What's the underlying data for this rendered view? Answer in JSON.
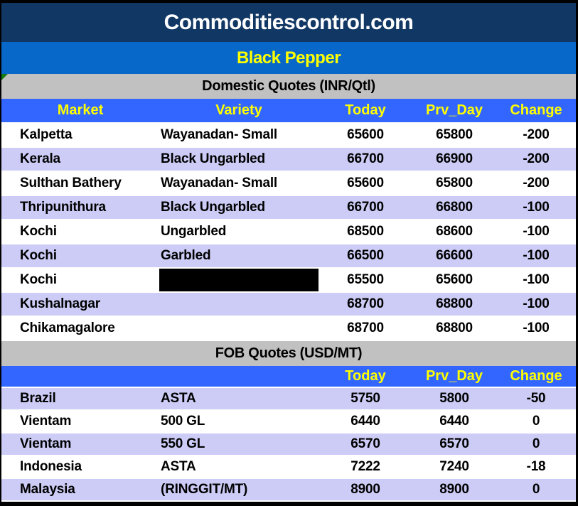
{
  "header": {
    "site_title": "Commoditiescontrol.com",
    "commodity_title": "Black Pepper"
  },
  "colors": {
    "navy_band": "#113764",
    "blue_band": "#0768ca",
    "section_gray": "#c1c1c1",
    "header_row_blue": "#3366fe",
    "row_lavender": "#ccccf6",
    "header_text_yellow": "#ffff00",
    "corner_marker_green": "#147a14"
  },
  "domestic": {
    "section_title": "Domestic Quotes (INR/Qtl)",
    "columns": [
      "Market",
      "Variety",
      "Today",
      "Prv_Day",
      "Change"
    ],
    "rows": [
      {
        "market": "Kalpetta",
        "variety": "Wayanadan- Small",
        "today": "65600",
        "prv_day": "65800",
        "change": "-200"
      },
      {
        "market": "Kerala",
        "variety": "Black Ungarbled",
        "today": "66700",
        "prv_day": "66900",
        "change": "-200"
      },
      {
        "market": "Sulthan Bathery",
        "variety": "Wayanadan- Small",
        "today": "65600",
        "prv_day": "65800",
        "change": "-200"
      },
      {
        "market": "Thripunithura",
        "variety": "Black Ungarbled",
        "today": "66700",
        "prv_day": "66800",
        "change": "-100"
      },
      {
        "market": "Kochi",
        "variety": "Ungarbled",
        "today": "68500",
        "prv_day": "68600",
        "change": "-100"
      },
      {
        "market": "Kochi",
        "variety": "Garbled",
        "today": "66500",
        "prv_day": "66600",
        "change": "-100"
      },
      {
        "market": "Kochi",
        "variety": "",
        "redacted": true,
        "today": "65500",
        "prv_day": "65600",
        "change": "-100"
      },
      {
        "market": "Kushalnagar",
        "variety": "",
        "today": "68700",
        "prv_day": "68800",
        "change": "-100"
      },
      {
        "market": "Chikamagalore",
        "variety": "",
        "today": "68700",
        "prv_day": "68800",
        "change": "-100"
      }
    ]
  },
  "fob": {
    "section_title": "FOB Quotes (USD/MT)",
    "columns": [
      "",
      "",
      "Today",
      "Prv_Day",
      "Change"
    ],
    "rows": [
      {
        "market": "Brazil",
        "variety": "ASTA",
        "today": "5750",
        "prv_day": "5800",
        "change": "-50"
      },
      {
        "market": "Vientam",
        "variety": "500 GL",
        "today": "6440",
        "prv_day": "6440",
        "change": "0"
      },
      {
        "market": "Vientam",
        "variety": "550 GL",
        "today": "6570",
        "prv_day": "6570",
        "change": "0"
      },
      {
        "market": "Indonesia",
        "variety": "ASTA",
        "today": "7222",
        "prv_day": "7240",
        "change": "-18"
      },
      {
        "market": "Malaysia",
        "variety": "(RINGGIT/MT)",
        "today": "8900",
        "prv_day": "8900",
        "change": "0"
      }
    ]
  }
}
